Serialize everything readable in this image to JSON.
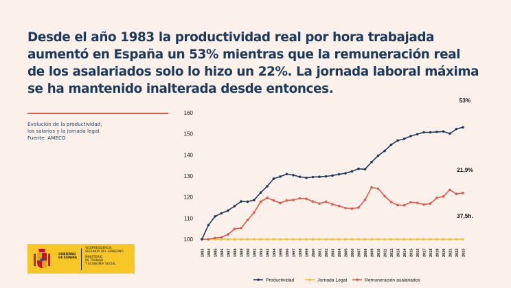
{
  "headline": {
    "line1": "Desde el año 1983 la productividad real por hora trabajada",
    "line2": "aumentó en España un 53% mientras que la remuneración real",
    "line3": "de los asalariados solo lo hizo un 22%. La jornada laboral máxima",
    "line4": "se ha mantenido inalterada desde entonces."
  },
  "caption": {
    "line1": "Evolución de la productividad,",
    "line2": "los salarios y la jornada legal.",
    "line3": "Fuente: AMECO"
  },
  "logo": {
    "gob1": "GOBIERNO",
    "gob2": "DE ESPAÑA",
    "v1": "VICEPRESIDENCIA",
    "v2": "SEGUNDA DEL GOBIERNO",
    "m1": "MINISTERIO",
    "m2": "DE TRABAJO",
    "m3": "Y ECONOMÍA SOCIAL"
  },
  "colors": {
    "background": "#fbf1ea",
    "headline": "#1b3a5c",
    "accent_red": "#e2574c",
    "logo_yellow": "#f7c627"
  },
  "chart_data": {
    "type": "line",
    "title": "",
    "xlabel": "",
    "ylabel": "",
    "ylim": [
      100,
      160
    ],
    "yticks": [
      100,
      110,
      120,
      130,
      140,
      150,
      160
    ],
    "grid": false,
    "legend_position": "bottom",
    "x": [
      "1983",
      "1984",
      "1985",
      "1986",
      "1987",
      "1988",
      "1989",
      "1990",
      "1991",
      "1992",
      "1993",
      "1994",
      "1995",
      "1996",
      "1997",
      "1998",
      "1999",
      "2000",
      "2001",
      "2002",
      "2003",
      "2004",
      "2005",
      "2006",
      "2007",
      "2008",
      "2009",
      "2010",
      "2011",
      "2012",
      "2013",
      "2014",
      "2015",
      "2016",
      "2017",
      "2018",
      "2019",
      "2020",
      "2021",
      "2022",
      "2023"
    ],
    "series": [
      {
        "name": "Productividad",
        "color": "#1b3a5c",
        "values": [
          100,
          106.7,
          110.8,
          112.3,
          113.6,
          115.7,
          117.9,
          117.8,
          118.6,
          122.1,
          125.1,
          128.7,
          129.7,
          130.9,
          130.4,
          129.6,
          129.1,
          129.5,
          129.6,
          129.8,
          130.2,
          130.8,
          131.3,
          132.2,
          133.4,
          133.2,
          136.6,
          139.6,
          141.9,
          144.8,
          146.8,
          147.6,
          148.9,
          149.8,
          150.7,
          150.7,
          150.9,
          151.1,
          150.1,
          152.3,
          153.1
        ]
      },
      {
        "name": "Jornada Legal",
        "color": "#f2c12e",
        "values": [
          100,
          100,
          100,
          100,
          100,
          100,
          100,
          100,
          100,
          100,
          100,
          100,
          100,
          100,
          100,
          100,
          100,
          100,
          100,
          100,
          100,
          100,
          100,
          100,
          100,
          100,
          100,
          100,
          100,
          100,
          100,
          100,
          100,
          100,
          100,
          100,
          100,
          100,
          100,
          100,
          100
        ]
      },
      {
        "name": "Remuneración asalariados",
        "color": "#e2574c",
        "values": [
          100,
          100,
          100.6,
          100.9,
          102.3,
          104.9,
          105.3,
          109.1,
          112.7,
          117.8,
          119.6,
          118.4,
          117.2,
          118.4,
          118.6,
          119.4,
          119.2,
          117.9,
          116.9,
          117.8,
          116.6,
          115.8,
          114.8,
          114.5,
          115.0,
          118.7,
          124.6,
          124.0,
          120.5,
          117.6,
          116.2,
          116.1,
          117.5,
          117.2,
          116.5,
          116.9,
          119.6,
          120.3,
          123.4,
          121.5,
          121.9
        ]
      }
    ],
    "annotations": [
      {
        "text": "53%",
        "series": 0
      },
      {
        "text": "21,9%",
        "series": 2
      },
      {
        "text": "37,5h.",
        "series": 1
      }
    ]
  }
}
